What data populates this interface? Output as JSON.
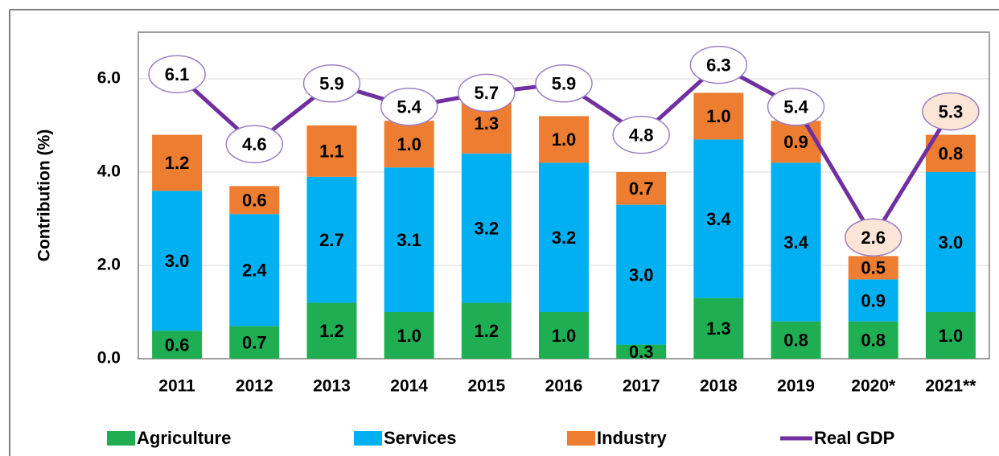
{
  "chart_data": {
    "type": "bar",
    "stacked": true,
    "y_label": "Contribution (%)",
    "categories": [
      "2011",
      "2012",
      "2013",
      "2014",
      "2015",
      "2016",
      "2017",
      "2018",
      "2019",
      "2020*",
      "2021**"
    ],
    "series": [
      {
        "name": "Agriculture",
        "color": "#1faf52",
        "type": "bar",
        "values": [
          0.6,
          0.7,
          1.2,
          1.0,
          1.2,
          1.0,
          0.3,
          1.3,
          0.8,
          0.8,
          1.0
        ],
        "value_labels": [
          "0.6",
          "0.7",
          "1.2",
          "1.0",
          "1.2",
          "1.0",
          "0.3",
          "1.3",
          "0.8",
          "0.8",
          "1.0"
        ]
      },
      {
        "name": "Services",
        "color": "#00b0f0",
        "type": "bar",
        "values": [
          3.0,
          2.4,
          2.7,
          3.1,
          3.2,
          3.2,
          3.0,
          3.4,
          3.4,
          0.9,
          3.0
        ],
        "value_labels": [
          "3.0",
          "2.4",
          "2.7",
          "3.1",
          "3.2",
          "3.2",
          "3.0",
          "3.4",
          "3.4",
          "0.9",
          "3.0"
        ]
      },
      {
        "name": "Industry",
        "color": "#ed7d31",
        "type": "bar",
        "values": [
          1.2,
          0.6,
          1.1,
          1.0,
          1.3,
          1.0,
          0.7,
          1.0,
          0.9,
          0.5,
          0.8
        ],
        "value_labels": [
          "1.2",
          "0.6",
          "1.1",
          "1.0",
          "1.3",
          "1.0",
          "0.7",
          "1.0",
          "0.9",
          "0.5",
          "0.8"
        ]
      },
      {
        "name": "Real GDP",
        "color": "#7030a0",
        "type": "line",
        "values": [
          6.1,
          4.6,
          5.9,
          5.4,
          5.7,
          5.9,
          4.8,
          6.3,
          5.4,
          2.6,
          5.3
        ],
        "label_colors": [
          "#ffffff",
          "#ffffff",
          "#ffffff",
          "#ffffff",
          "#ffffff",
          "#ffffff",
          "#ffffff",
          "#ffffff",
          "#ffffff",
          "#fbe5d6",
          "#fbe5d6"
        ]
      }
    ],
    "ylim": [
      0,
      7
    ],
    "yticks": [
      {
        "value": 0,
        "label": "0.0"
      },
      {
        "value": 2,
        "label": "2.0"
      },
      {
        "value": 4,
        "label": "4.0"
      },
      {
        "value": 6,
        "label": "6.0"
      }
    ],
    "grid": true,
    "legend": "bottom"
  }
}
